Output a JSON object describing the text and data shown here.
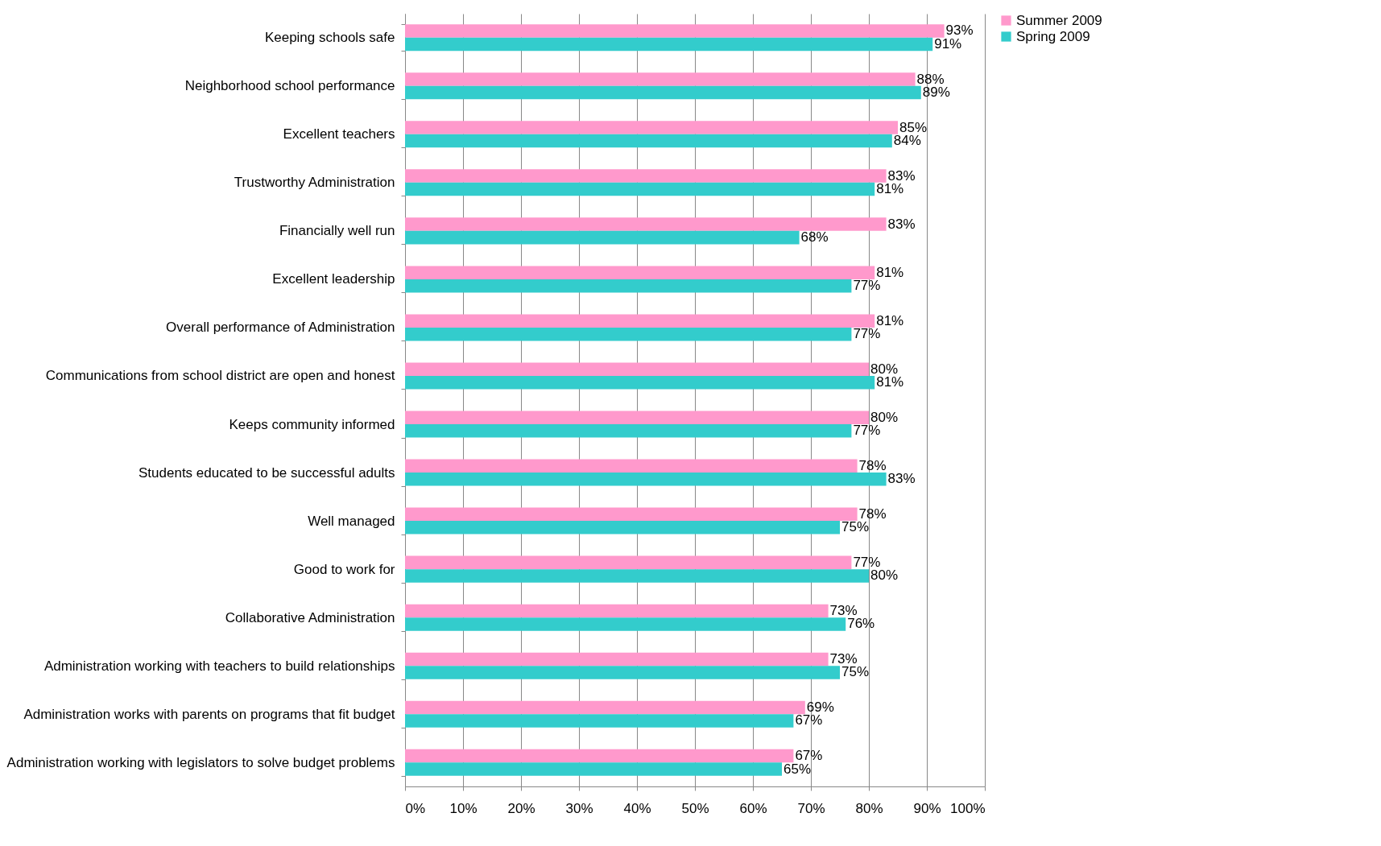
{
  "chart_data": {
    "type": "bar",
    "orientation": "horizontal",
    "categories": [
      "Keeping schools safe",
      "Neighborhood school performance",
      "Excellent teachers",
      "Trustworthy Administration",
      "Financially well run",
      "Excellent leadership",
      "Overall performance of Administration",
      "Communications from school district are open and honest",
      "Keeps community informed",
      "Students educated to be successful adults",
      "Well managed",
      "Good to work for",
      "Collaborative Administration",
      "Administration working with teachers to build relationships",
      "Administration works with parents on programs that fit budget",
      "Administration working with legislators to solve budget problems"
    ],
    "series": [
      {
        "name": "Summer 2009",
        "color": "#ff99cc",
        "values": [
          93,
          88,
          85,
          83,
          83,
          81,
          81,
          80,
          80,
          78,
          78,
          77,
          73,
          73,
          69,
          67
        ],
        "value_labels": [
          "93%",
          "88%",
          "85%",
          "83%",
          "83%",
          "81%",
          "81%",
          "80%",
          "80%",
          "78%",
          "78%",
          "77%",
          "73%",
          "73%",
          "69%",
          "67%"
        ]
      },
      {
        "name": "Spring 2009",
        "color": "#33cccc",
        "values": [
          91,
          89,
          84,
          81,
          68,
          77,
          77,
          81,
          77,
          83,
          75,
          80,
          76,
          75,
          67,
          65
        ],
        "value_labels": [
          "91%",
          "89%",
          "84%",
          "81%",
          "68%",
          "77%",
          "77%",
          "81%",
          "77%",
          "83%",
          "75%",
          "80%",
          "76%",
          "75%",
          "67%",
          "65%"
        ]
      }
    ],
    "xlim": [
      0,
      100
    ],
    "xticks": [
      {
        "value": 0,
        "label": "0%"
      },
      {
        "value": 10,
        "label": "10%"
      },
      {
        "value": 20,
        "label": "20%"
      },
      {
        "value": 30,
        "label": "30%"
      },
      {
        "value": 40,
        "label": "40%"
      },
      {
        "value": 50,
        "label": "50%"
      },
      {
        "value": 60,
        "label": "60%"
      },
      {
        "value": 70,
        "label": "70%"
      },
      {
        "value": 80,
        "label": "80%"
      },
      {
        "value": 90,
        "label": "90%"
      },
      {
        "value": 100,
        "label": "100%"
      }
    ],
    "grid": "x",
    "legend": "right"
  }
}
